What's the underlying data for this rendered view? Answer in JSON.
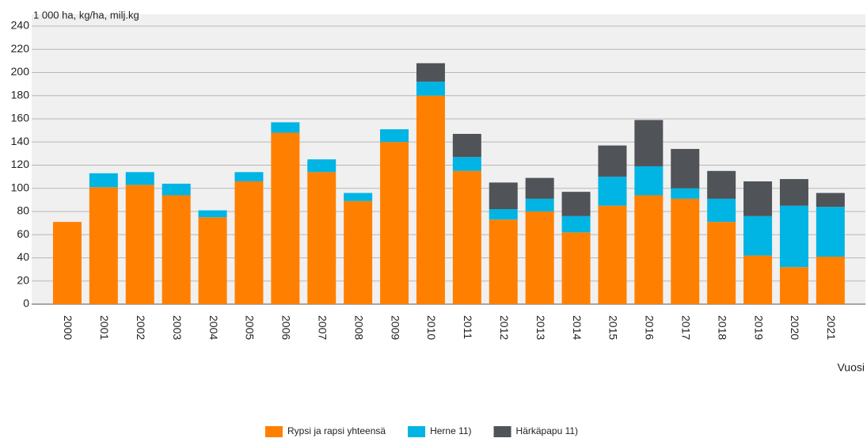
{
  "chart_data": {
    "type": "stacked_bar",
    "y_axis_label": "1 000 ha, kg/ha, milj.kg",
    "x_axis_label": "Vuosi",
    "categories": [
      "2000",
      "2001",
      "2002",
      "2003",
      "2004",
      "2005",
      "2006",
      "2007",
      "2008",
      "2009",
      "2010",
      "2011",
      "2012",
      "2013",
      "2014",
      "2015",
      "2016",
      "2017",
      "2018",
      "2019",
      "2020",
      "2021"
    ],
    "series": [
      {
        "name": "Rypsi ja rapsi yhteensä",
        "color": "#ff8000",
        "values": [
          71,
          101,
          103,
          94,
          75,
          106,
          148,
          114,
          89,
          140,
          180,
          115,
          73,
          80,
          62,
          85,
          94,
          91,
          71,
          42,
          32,
          41
        ]
      },
      {
        "name": "Herne 11)",
        "color": "#00b4e4",
        "values": [
          null,
          12,
          11,
          10,
          6,
          8,
          9,
          11,
          7,
          11,
          12,
          12,
          9,
          11,
          14,
          25,
          25,
          9,
          20,
          34,
          53,
          43
        ]
      },
      {
        "name": "Härkäpapu 11)",
        "color": "#505458",
        "values": [
          null,
          null,
          null,
          null,
          null,
          null,
          null,
          null,
          null,
          null,
          16,
          20,
          23,
          18,
          21,
          27,
          40,
          34,
          24,
          30,
          23,
          12
        ]
      }
    ],
    "ylim": [
      0,
      240
    ],
    "yticks": [
      0,
      20,
      40,
      60,
      80,
      100,
      120,
      140,
      160,
      180,
      200,
      220,
      240
    ],
    "grid": true
  }
}
